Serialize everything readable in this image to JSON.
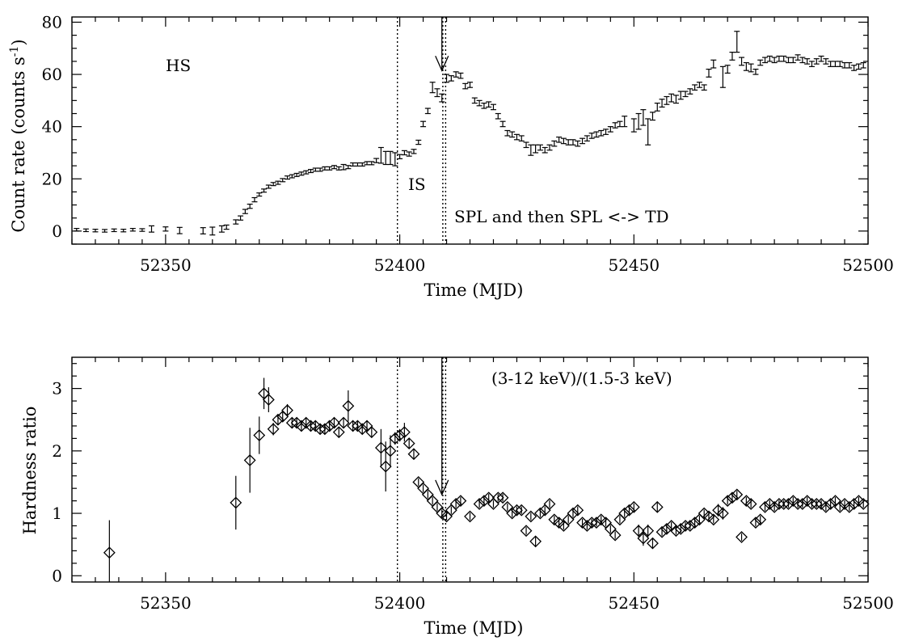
{
  "chart_data": [
    {
      "type": "scatter",
      "xlabel": "Time (MJD)",
      "ylabel": "Count rate (counts s",
      "ylabel_sup": "-1",
      "ylabel_close": ")",
      "xlim": [
        52330,
        52500
      ],
      "ylim": [
        -5,
        82
      ],
      "xticks": [
        52350,
        52400,
        52450,
        52500
      ],
      "yticks": [
        0,
        20,
        40,
        60,
        80
      ],
      "annotations": [
        "HS",
        "IS",
        "SPL and then SPL <-> TD"
      ],
      "vertical_lines_x": [
        52399.5,
        52409.2,
        52409.8
      ],
      "arrow_x": 52409.0,
      "series": [
        {
          "marker": "errorbar",
          "x": [
            52331,
            52333,
            52335,
            52337,
            52339,
            52341,
            52343,
            52345,
            52347,
            52350,
            52353,
            52358,
            52360,
            52362,
            52363,
            52365,
            52366,
            52367,
            52368,
            52369,
            52370,
            52371,
            52372,
            52373,
            52374,
            52375,
            52376,
            52377,
            52378,
            52379,
            52380,
            52381,
            52382,
            52383,
            52384,
            52385,
            52386,
            52387,
            52388,
            52389,
            52390,
            52391,
            52392,
            52393,
            52394,
            52395,
            52396,
            52397,
            52398,
            52399,
            52400,
            52401,
            52402,
            52403,
            52404,
            52405,
            52406,
            52407,
            52408,
            52409,
            52410,
            52411,
            52412,
            52413,
            52414,
            52415,
            52416,
            52417,
            52418,
            52419,
            52420,
            52421,
            52422,
            52423,
            52424,
            52425,
            52426,
            52427,
            52428,
            52429,
            52430,
            52431,
            52432,
            52433,
            52434,
            52435,
            52436,
            52437,
            52438,
            52439,
            52440,
            52441,
            52442,
            52443,
            52444,
            52445,
            52446,
            52447,
            52448,
            52450,
            52451,
            52452,
            52453,
            52454,
            52455,
            52456,
            52457,
            52458,
            52459,
            52460,
            52461,
            52462,
            52463,
            52464,
            52465,
            52466,
            52467,
            52469,
            52470,
            52471,
            52472,
            52473,
            52474,
            52475,
            52476,
            52477,
            52478,
            52479,
            52480,
            52481,
            52482,
            52483,
            52484,
            52485,
            52486,
            52487,
            52488,
            52489,
            52490,
            52491,
            52492,
            52493,
            52494,
            52495,
            52496,
            52497,
            52498,
            52499
          ],
          "y": [
            0.5,
            0.3,
            0.2,
            0.1,
            0.3,
            0.2,
            0.5,
            0.4,
            0.8,
            0.8,
            0.2,
            0.1,
            0.0,
            0.8,
            1.5,
            3.5,
            5.0,
            7.5,
            9.5,
            12.0,
            14.0,
            15.5,
            17.0,
            18.0,
            18.5,
            19.5,
            20.5,
            21.0,
            21.5,
            22.0,
            22.5,
            23.0,
            23.5,
            23.5,
            24.0,
            24.0,
            24.5,
            24.0,
            24.5,
            24.5,
            25.5,
            25.5,
            25.5,
            26.0,
            26.0,
            27.0,
            29.0,
            28.0,
            28.0,
            27.5,
            28.5,
            30.0,
            29.5,
            30.5,
            34.0,
            41.0,
            46.0,
            55.0,
            53.0,
            51.0,
            58.5,
            58.5,
            60.0,
            59.5,
            55.5,
            56.0,
            50.0,
            49.0,
            48.0,
            48.5,
            47.5,
            44.0,
            41.0,
            37.5,
            37.0,
            36.0,
            35.5,
            33.0,
            31.0,
            31.5,
            32.0,
            31.0,
            32.0,
            33.5,
            35.0,
            34.5,
            34.0,
            34.0,
            33.5,
            34.5,
            35.5,
            36.5,
            37.0,
            37.5,
            38.0,
            39.0,
            40.5,
            41.0,
            42.0,
            40.5,
            42.0,
            43.5,
            38.0,
            44.0,
            47.5,
            49.0,
            50.0,
            51.0,
            50.5,
            52.0,
            52.5,
            53.5,
            55.0,
            56.0,
            55.0,
            60.5,
            64.0,
            59.0,
            62.0,
            67.0,
            72.5,
            65.0,
            63.0,
            62.5,
            61.0,
            64.5,
            65.5,
            66.0,
            65.5,
            66.0,
            66.0,
            65.5,
            65.5,
            66.5,
            65.5,
            65.0,
            64.0,
            65.0,
            66.0,
            65.0,
            64.0,
            64.0,
            64.0,
            63.5,
            63.5,
            62.5,
            63.0,
            63.5
          ],
          "err": [
            0.5,
            0.5,
            0.5,
            0.5,
            0.5,
            0.5,
            0.5,
            0.5,
            1.2,
            0.8,
            1.2,
            1.2,
            1.5,
            1.2,
            0.8,
            0.8,
            0.8,
            0.8,
            0.8,
            0.8,
            0.6,
            0.6,
            0.6,
            0.6,
            0.6,
            0.6,
            0.6,
            0.6,
            0.6,
            0.6,
            0.6,
            0.6,
            0.6,
            0.6,
            0.6,
            0.6,
            0.6,
            0.6,
            1.0,
            0.6,
            0.6,
            0.6,
            0.6,
            0.6,
            0.6,
            0.8,
            3.0,
            2.5,
            2.5,
            2.5,
            0.8,
            0.8,
            0.8,
            0.8,
            0.8,
            1.0,
            1.0,
            2.0,
            1.5,
            1.5,
            1.5,
            1.0,
            1.0,
            1.0,
            1.0,
            1.0,
            1.0,
            1.0,
            1.0,
            1.0,
            1.0,
            1.0,
            1.0,
            1.0,
            1.0,
            1.0,
            1.0,
            1.0,
            2.0,
            1.5,
            1.0,
            1.0,
            1.0,
            1.0,
            1.0,
            1.0,
            1.0,
            1.0,
            1.0,
            1.0,
            1.0,
            1.0,
            1.0,
            1.0,
            1.0,
            1.0,
            1.0,
            1.0,
            2.0,
            2.5,
            3.0,
            3.0,
            5.0,
            1.5,
            1.5,
            1.5,
            1.5,
            1.5,
            1.5,
            1.5,
            1.0,
            1.0,
            1.0,
            1.0,
            1.0,
            1.5,
            1.5,
            4.0,
            1.5,
            1.5,
            4.0,
            1.5,
            1.5,
            1.5,
            1.0,
            1.0,
            1.0,
            1.0,
            1.0,
            1.0,
            1.0,
            1.0,
            1.0,
            1.0,
            1.0,
            1.0,
            1.0,
            1.0,
            1.0,
            1.0,
            1.0,
            1.0,
            1.0,
            1.0,
            1.0,
            1.0,
            1.0,
            1.0
          ]
        }
      ]
    },
    {
      "type": "scatter",
      "xlabel": "Time (MJD)",
      "ylabel": "Hardness ratio",
      "xlim": [
        52330,
        52500
      ],
      "ylim": [
        -0.1,
        3.5
      ],
      "xticks": [
        52350,
        52400,
        52450,
        52500
      ],
      "yticks": [
        0,
        1,
        2,
        3
      ],
      "annotations": [
        "(3-12 keV)/(1.5-3 keV)"
      ],
      "vertical_lines_x": [
        52399.5,
        52409.2,
        52409.8
      ],
      "arrow_x": 52409.0,
      "series": [
        {
          "marker": "diamond",
          "x": [
            52338,
            52365,
            52368,
            52370,
            52371,
            52372,
            52373,
            52374,
            52375,
            52376,
            52377,
            52378,
            52379,
            52380,
            52381,
            52382,
            52383,
            52384,
            52385,
            52386,
            52387,
            52388,
            52389,
            52390,
            52391,
            52392,
            52393,
            52394,
            52396,
            52397,
            52398,
            52399,
            52400,
            52401,
            52402,
            52403,
            52404,
            52405,
            52406,
            52407,
            52408,
            52409,
            52410,
            52411,
            52412,
            52413,
            52415,
            52417,
            52418,
            52419,
            52420,
            52421,
            52422,
            52423,
            52424,
            52425,
            52426,
            52427,
            52428,
            52429,
            52430,
            52431,
            52432,
            52433,
            52434,
            52435,
            52436,
            52437,
            52438,
            52439,
            52440,
            52441,
            52442,
            52443,
            52444,
            52445,
            52446,
            52447,
            52448,
            52449,
            52450,
            52451,
            52452,
            52453,
            52454,
            52455,
            52456,
            52457,
            52458,
            52459,
            52460,
            52461,
            52462,
            52463,
            52464,
            52465,
            52466,
            52467,
            52468,
            52469,
            52470,
            52471,
            52472,
            52473,
            52474,
            52475,
            52476,
            52477,
            52478,
            52479,
            52480,
            52481,
            52482,
            52483,
            52484,
            52485,
            52486,
            52487,
            52488,
            52489,
            52490,
            52491,
            52492,
            52493,
            52494,
            52495,
            52496,
            52497,
            52498,
            52499
          ],
          "y": [
            0.37,
            1.17,
            1.85,
            2.25,
            2.92,
            2.82,
            2.35,
            2.5,
            2.55,
            2.65,
            2.45,
            2.45,
            2.4,
            2.45,
            2.4,
            2.4,
            2.35,
            2.35,
            2.4,
            2.45,
            2.3,
            2.45,
            2.72,
            2.4,
            2.4,
            2.35,
            2.4,
            2.3,
            2.05,
            1.75,
            2.0,
            2.2,
            2.25,
            2.3,
            2.12,
            1.95,
            1.5,
            1.4,
            1.3,
            1.2,
            1.1,
            1.0,
            0.95,
            1.05,
            1.15,
            1.2,
            0.95,
            1.15,
            1.2,
            1.25,
            1.15,
            1.25,
            1.25,
            1.1,
            1.0,
            1.05,
            1.05,
            0.72,
            0.95,
            0.55,
            1.0,
            1.05,
            1.15,
            0.9,
            0.85,
            0.8,
            0.9,
            1.0,
            1.05,
            0.85,
            0.8,
            0.85,
            0.85,
            0.9,
            0.85,
            0.75,
            0.65,
            0.9,
            1.0,
            1.05,
            1.1,
            0.72,
            0.6,
            0.72,
            0.52,
            1.1,
            0.7,
            0.75,
            0.8,
            0.72,
            0.75,
            0.8,
            0.8,
            0.85,
            0.9,
            1.0,
            0.95,
            0.9,
            1.05,
            1.0,
            1.2,
            1.25,
            1.3,
            0.62,
            1.2,
            1.15,
            0.85,
            0.9,
            1.1,
            1.15,
            1.1,
            1.15,
            1.15,
            1.15,
            1.2,
            1.15,
            1.15,
            1.2,
            1.15,
            1.15,
            1.15,
            1.1,
            1.15,
            1.2,
            1.1,
            1.15,
            1.1,
            1.15,
            1.2,
            1.15
          ],
          "err": [
            0.52,
            0.43,
            0.52,
            0.3,
            0.25,
            0.2,
            0.1,
            0.08,
            0.08,
            0.1,
            0.08,
            0.08,
            0.08,
            0.08,
            0.08,
            0.08,
            0.08,
            0.08,
            0.08,
            0.08,
            0.08,
            0.08,
            0.25,
            0.08,
            0.08,
            0.08,
            0.08,
            0.08,
            0.3,
            0.4,
            0.25,
            0.1,
            0.1,
            0.15,
            0.08,
            0.08,
            0.06,
            0.06,
            0.06,
            0.06,
            0.06,
            0.06,
            0.06,
            0.06,
            0.06,
            0.06,
            0.06,
            0.06,
            0.06,
            0.06,
            0.06,
            0.06,
            0.06,
            0.06,
            0.06,
            0.06,
            0.06,
            0.06,
            0.06,
            0.08,
            0.06,
            0.06,
            0.06,
            0.06,
            0.06,
            0.06,
            0.06,
            0.06,
            0.06,
            0.06,
            0.06,
            0.06,
            0.06,
            0.06,
            0.06,
            0.06,
            0.06,
            0.06,
            0.06,
            0.06,
            0.06,
            0.1,
            0.12,
            0.1,
            0.08,
            0.08,
            0.06,
            0.06,
            0.06,
            0.06,
            0.06,
            0.06,
            0.06,
            0.06,
            0.06,
            0.06,
            0.06,
            0.06,
            0.1,
            0.1,
            0.06,
            0.06,
            0.06,
            0.06,
            0.06,
            0.06,
            0.06,
            0.06,
            0.06,
            0.06,
            0.06,
            0.06,
            0.06,
            0.06,
            0.06,
            0.06,
            0.06,
            0.06,
            0.06,
            0.06,
            0.06,
            0.06,
            0.06,
            0.06,
            0.06,
            0.06,
            0.06,
            0.06,
            0.06,
            0.06
          ]
        }
      ]
    }
  ]
}
